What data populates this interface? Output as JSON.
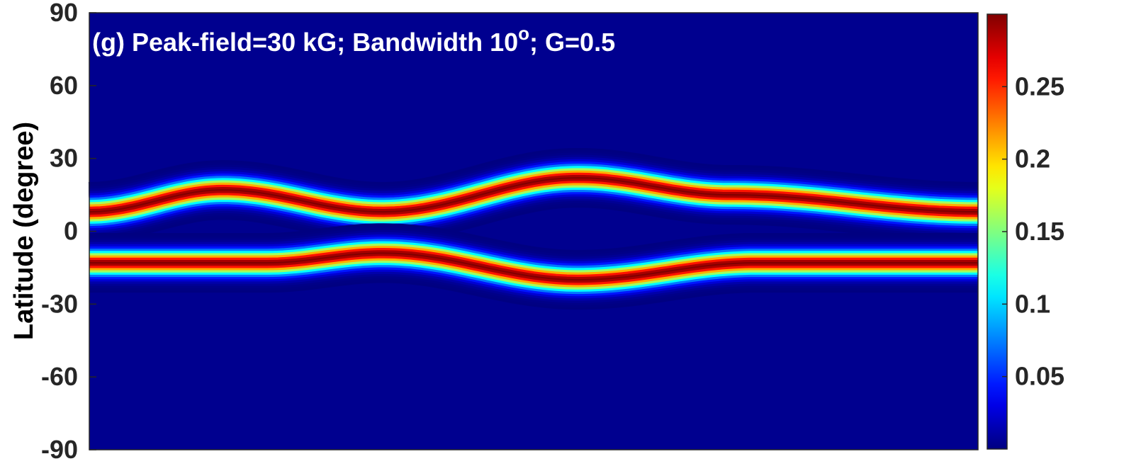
{
  "chart_data": {
    "type": "heatmap",
    "title_text": "(g) Peak-field=30 kG; Bandwidth 10",
    "title_superscript": "o",
    "title_suffix": "; G=0.5",
    "xlabel": "",
    "ylabel": "Latitude (degree)",
    "ylim": [
      -90,
      90
    ],
    "yticks": [
      90,
      60,
      30,
      0,
      -30,
      -60,
      -90
    ],
    "ytick_labels": [
      "90",
      "60",
      "30",
      "0",
      "-30",
      "-60",
      "-90"
    ],
    "xticks_visible": false,
    "colormap": "jet",
    "colorbar": {
      "range": [
        0.0,
        0.3
      ],
      "ticks": [
        0.05,
        0.1,
        0.15,
        0.2,
        0.25
      ],
      "tick_labels": [
        "0.05",
        "0.1",
        "0.15",
        "0.2",
        "0.25"
      ]
    },
    "background_value": 0.0,
    "band_peak_value": 0.3,
    "band_halfwidth_deg": 6,
    "bands": [
      {
        "name": "northern band",
        "x_fraction": [
          0.0,
          0.15,
          0.33,
          0.55,
          0.72,
          1.0
        ],
        "center_lat": [
          8,
          17,
          8,
          22,
          15,
          8
        ]
      },
      {
        "name": "southern band",
        "x_fraction": [
          0.0,
          0.2,
          0.33,
          0.55,
          0.75,
          1.0
        ],
        "center_lat": [
          -13,
          -13,
          -9,
          -20,
          -13,
          -13
        ]
      }
    ]
  }
}
